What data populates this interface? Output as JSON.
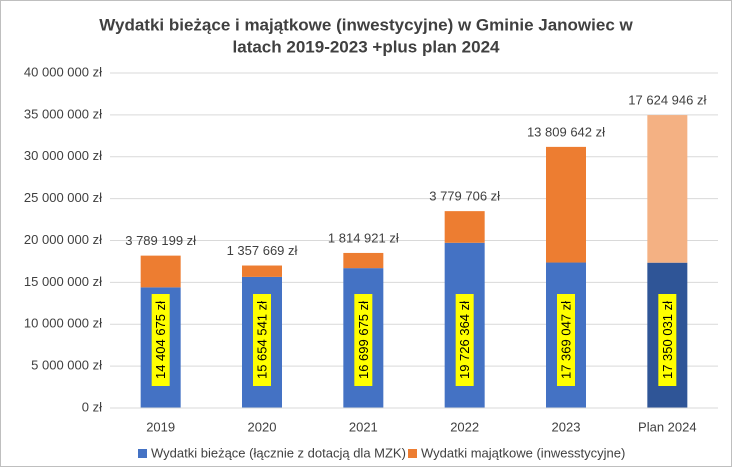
{
  "chart_data": {
    "type": "stacked_bar",
    "title": [
      "Wydatki bieżące i majątkowe (inwestycyjne) w Gminie Janowiec w",
      "latach 2019-2023 +plus plan 2024"
    ],
    "categories": [
      "2019",
      "2020",
      "2021",
      "2022",
      "2023",
      "Plan 2024"
    ],
    "series": [
      {
        "name": "Wydatki bieżące (łącznie z dotacją dla MZK)",
        "color": "#4472c4",
        "colors": [
          "#4472c4",
          "#4472c4",
          "#4472c4",
          "#4472c4",
          "#4472c4",
          "#2f5597"
        ],
        "values": [
          14404675,
          15654541,
          16699675,
          19726364,
          17369047,
          17350031
        ],
        "value_labels": [
          "14 404 675 zł",
          "15 654 541 zł",
          "16 699 675 zł",
          "19 726 364 zł",
          "17 369 047 zł",
          "17 350 031 zł"
        ]
      },
      {
        "name": "Wydatki majątkowe (inwesstycyjne)",
        "color": "#ed7d31",
        "colors": [
          "#ed7d31",
          "#ed7d31",
          "#ed7d31",
          "#ed7d31",
          "#ed7d31",
          "#f4b183"
        ],
        "values": [
          3789199,
          1357669,
          1814921,
          3779706,
          13809642,
          17624946
        ],
        "value_labels": [
          "3 789 199 zł",
          "1 357 669 zł",
          "1 814 921 zł",
          "3 779 706 zł",
          "13 809 642 zł",
          "17 624 946 zł"
        ]
      }
    ],
    "ylim": [
      0,
      40000000
    ],
    "yticks": [
      {
        "value": 0,
        "label": "0 zł"
      },
      {
        "value": 5000000,
        "label": "5 000 000 zł"
      },
      {
        "value": 10000000,
        "label": "10 000 000 zł"
      },
      {
        "value": 15000000,
        "label": "15 000 000 zł"
      },
      {
        "value": 20000000,
        "label": "20 000 000 zł"
      },
      {
        "value": 25000000,
        "label": "25 000 000 zł"
      },
      {
        "value": 30000000,
        "label": "30 000 000 zł"
      },
      {
        "value": 35000000,
        "label": "35 000 000 zł"
      },
      {
        "value": 40000000,
        "label": "40 000 000 zł"
      }
    ],
    "grid": true,
    "legend": "bottom"
  }
}
